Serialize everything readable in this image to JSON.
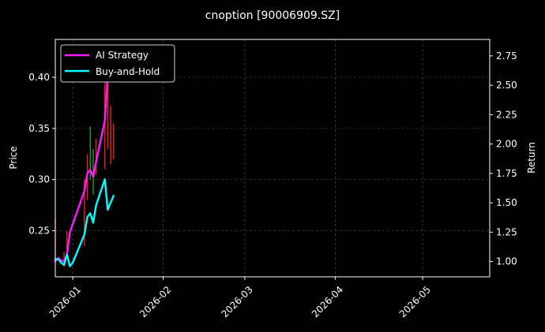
{
  "chart_data": {
    "type": "line",
    "title": "cnoption [90006909.SZ]",
    "ylabel_left": "Price",
    "ylabel_right": "Return",
    "xlim": [
      "2025-12-26",
      "2026-05-24"
    ],
    "ylim_left": [
      0.205,
      0.437
    ],
    "ylim_right": [
      0.87,
      2.89
    ],
    "x_ticks": [
      {
        "date": "2026-01-01",
        "label": "2026-01"
      },
      {
        "date": "2026-02-01",
        "label": "2026-02"
      },
      {
        "date": "2026-03-01",
        "label": "2026-03"
      },
      {
        "date": "2026-04-01",
        "label": "2026-04"
      },
      {
        "date": "2026-05-01",
        "label": "2026-05"
      }
    ],
    "y_ticks_left": [
      "0.25",
      "0.30",
      "0.35",
      "0.40"
    ],
    "y_ticks_right": [
      "1.00",
      "1.25",
      "1.50",
      "1.75",
      "2.00",
      "2.25",
      "2.50",
      "2.75"
    ],
    "grid": true,
    "legend_position": "top-left",
    "series": [
      {
        "name": "AI Strategy",
        "color": "#ff1aff",
        "points": [
          {
            "x": "2025-12-26",
            "y": 1.0
          },
          {
            "x": "2025-12-27",
            "y": 1.03
          },
          {
            "x": "2025-12-28",
            "y": 1.01
          },
          {
            "x": "2025-12-29",
            "y": 1.0
          },
          {
            "x": "2025-12-30",
            "y": 1.06
          },
          {
            "x": "2025-12-31",
            "y": 1.25
          },
          {
            "x": "2026-01-05",
            "y": 1.6
          },
          {
            "x": "2026-01-06",
            "y": 1.75
          },
          {
            "x": "2026-01-07",
            "y": 1.78
          },
          {
            "x": "2026-01-08",
            "y": 1.72
          },
          {
            "x": "2026-01-09",
            "y": 1.85
          },
          {
            "x": "2026-01-12",
            "y": 2.2
          },
          {
            "x": "2026-01-13",
            "y": 2.6
          }
        ]
      },
      {
        "name": "Buy-and-Hold",
        "color": "#00ffff",
        "points": [
          {
            "x": "2025-12-26",
            "y": 1.02
          },
          {
            "x": "2025-12-27",
            "y": 1.02
          },
          {
            "x": "2025-12-28",
            "y": 0.99
          },
          {
            "x": "2025-12-29",
            "y": 0.97
          },
          {
            "x": "2025-12-30",
            "y": 1.06
          },
          {
            "x": "2025-12-31",
            "y": 0.96
          },
          {
            "x": "2026-01-01",
            "y": 0.99
          },
          {
            "x": "2026-01-05",
            "y": 1.23
          },
          {
            "x": "2026-01-06",
            "y": 1.38
          },
          {
            "x": "2026-01-07",
            "y": 1.41
          },
          {
            "x": "2026-01-08",
            "y": 1.33
          },
          {
            "x": "2026-01-09",
            "y": 1.48
          },
          {
            "x": "2026-01-12",
            "y": 1.7
          },
          {
            "x": "2026-01-13",
            "y": 1.44
          },
          {
            "x": "2026-01-14",
            "y": 1.5
          },
          {
            "x": "2026-01-15",
            "y": 1.56
          }
        ]
      }
    ],
    "price_bars": [
      {
        "x": "2025-12-26",
        "low": 0.222,
        "high": 0.262,
        "color": "#ff2020"
      },
      {
        "x": "2025-12-29",
        "low": 0.221,
        "high": 0.229,
        "color": "#ff2020"
      },
      {
        "x": "2025-12-30",
        "low": 0.232,
        "high": 0.25,
        "color": "#ff2020"
      },
      {
        "x": "2026-01-05",
        "low": 0.235,
        "high": 0.3,
        "color": "#ff2020"
      },
      {
        "x": "2026-01-06",
        "low": 0.28,
        "high": 0.325,
        "color": "#ff2020"
      },
      {
        "x": "2026-01-07",
        "low": 0.3,
        "high": 0.352,
        "color": "#22aa22"
      },
      {
        "x": "2026-01-08",
        "low": 0.285,
        "high": 0.33,
        "color": "#22aa22"
      },
      {
        "x": "2026-01-09",
        "low": 0.305,
        "high": 0.34,
        "color": "#ff2020"
      },
      {
        "x": "2026-01-12",
        "low": 0.31,
        "high": 0.395,
        "color": "#ff2020"
      },
      {
        "x": "2026-01-13",
        "low": 0.33,
        "high": 0.43,
        "color": "#ff2020"
      },
      {
        "x": "2026-01-14",
        "low": 0.315,
        "high": 0.372,
        "color": "#ff2020"
      },
      {
        "x": "2026-01-15",
        "low": 0.32,
        "high": 0.355,
        "color": "#ff2020"
      }
    ]
  }
}
